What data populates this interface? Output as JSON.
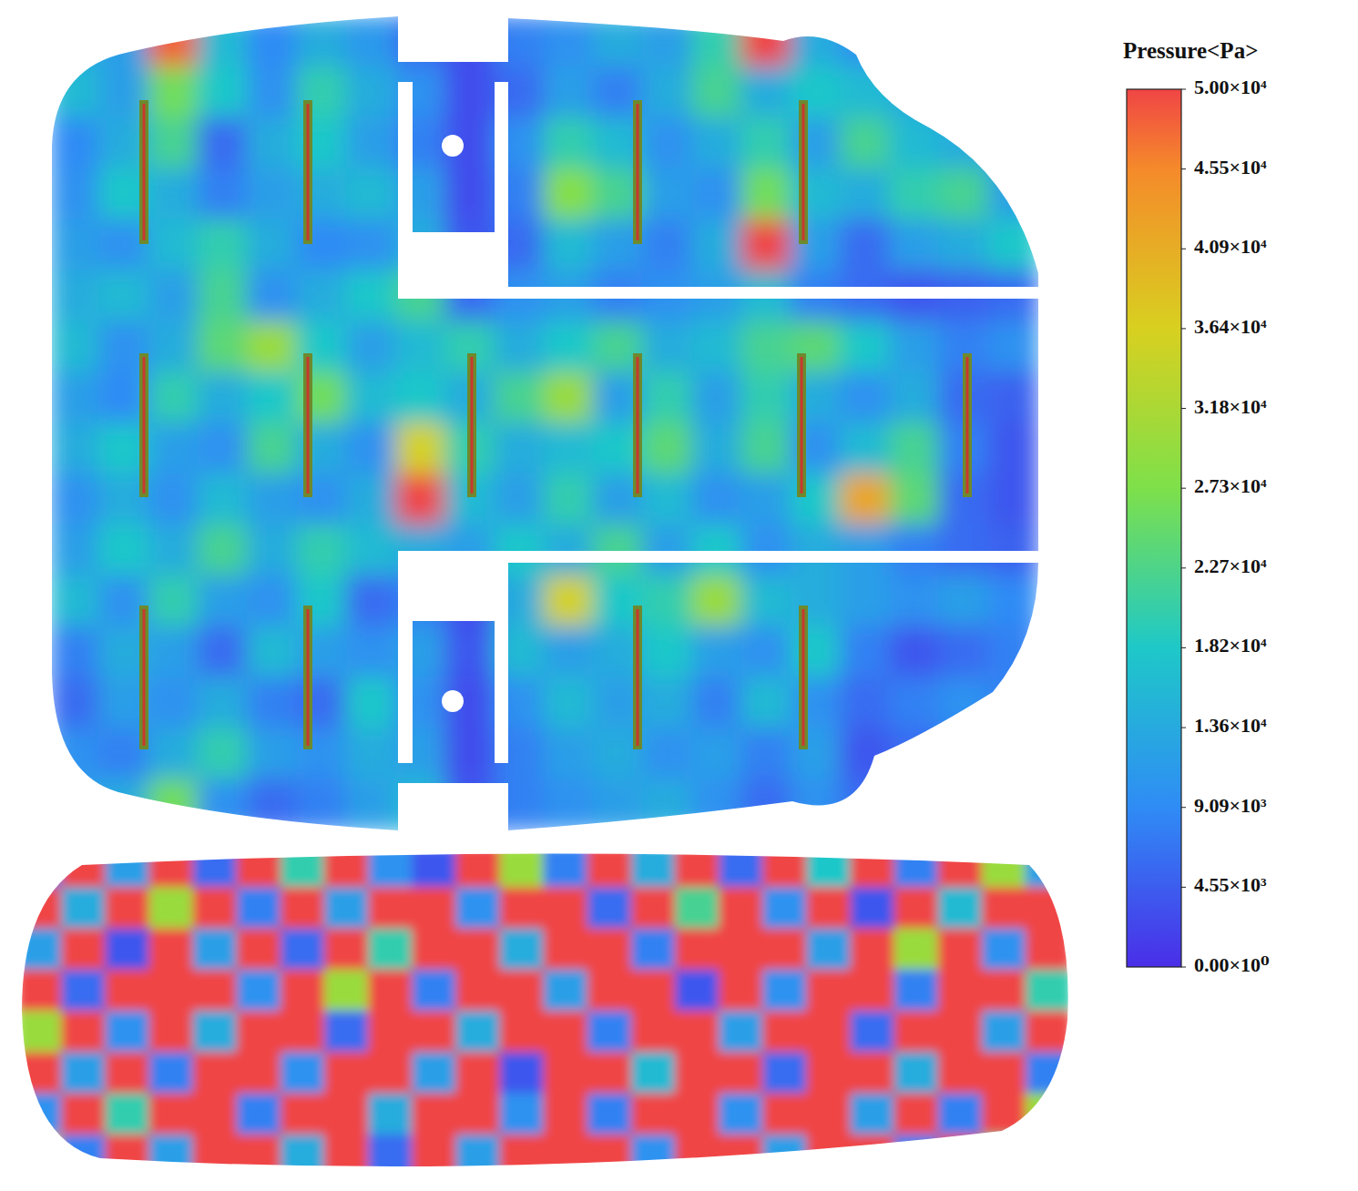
{
  "chart_data": {
    "type": "heatmap",
    "title": "Pressure<Pa>",
    "colorbar": {
      "range": [
        0,
        50000
      ],
      "ticks": [
        {
          "value": 0,
          "label": "0.00×10⁰"
        },
        {
          "value": 4545,
          "label": "4.55×10³"
        },
        {
          "value": 9091,
          "label": "9.09×10³"
        },
        {
          "value": 13636,
          "label": "1.36×10⁴"
        },
        {
          "value": 18182,
          "label": "1.82×10⁴"
        },
        {
          "value": 22727,
          "label": "2.27×10⁴"
        },
        {
          "value": 27273,
          "label": "2.73×10⁴"
        },
        {
          "value": 31818,
          "label": "3.18×10⁴"
        },
        {
          "value": 36364,
          "label": "3.64×10⁴"
        },
        {
          "value": 40909,
          "label": "4.09×10⁴"
        },
        {
          "value": 45455,
          "label": "4.55×10⁴"
        },
        {
          "value": 50000,
          "label": "5.00×10⁴"
        }
      ]
    },
    "values": [
      [
        [
          14000,
          12000,
          48000,
          16000,
          9000,
          14000,
          11000,
          6000,
          3000,
          8000,
          10000,
          14000,
          12000,
          20000,
          50000,
          14000,
          10000,
          8000,
          6000,
          5000
        ],
        [
          16000,
          12000,
          26000,
          18000,
          10000,
          20000,
          14000,
          10000,
          3000,
          6000,
          12000,
          8000,
          14000,
          22000,
          14000,
          18000,
          16000,
          14000,
          9000,
          7000
        ],
        [
          9000,
          14000,
          22000,
          6000,
          14000,
          18000,
          12000,
          8000,
          3000,
          10000,
          20000,
          16000,
          10000,
          14000,
          20000,
          12000,
          22000,
          16000,
          14000,
          10000
        ],
        [
          10000,
          18000,
          14000,
          8000,
          12000,
          14000,
          16000,
          12000,
          3000,
          8000,
          28000,
          22000,
          12000,
          10000,
          26000,
          16000,
          14000,
          20000,
          22000,
          12000
        ],
        [
          12000,
          10000,
          16000,
          20000,
          14000,
          9000,
          10000,
          14000,
          4000,
          6000,
          16000,
          12000,
          8000,
          14000,
          50000,
          12000,
          6000,
          12000,
          14000,
          18000
        ],
        [
          14000,
          16000,
          12000,
          22000,
          10000,
          14000,
          18000,
          22000,
          6000,
          10000,
          12000,
          8000,
          10000,
          12000,
          16000,
          8000,
          6000,
          4000,
          5000,
          6000
        ],
        [
          16000,
          10000,
          14000,
          24000,
          30000,
          18000,
          12000,
          16000,
          20000,
          14000,
          18000,
          22000,
          14000,
          16000,
          22000,
          24000,
          18000,
          12000,
          8000,
          10000
        ],
        [
          12000,
          9000,
          20000,
          14000,
          18000,
          26000,
          16000,
          18000,
          14000,
          22000,
          30000,
          12000,
          20000,
          12000,
          20000,
          14000,
          10000,
          14000,
          6000,
          5000
        ],
        [
          14000,
          18000,
          12000,
          10000,
          22000,
          14000,
          10000,
          36000,
          20000,
          14000,
          16000,
          18000,
          24000,
          14000,
          22000,
          10000,
          16000,
          22000,
          8000,
          4000
        ],
        [
          10000,
          14000,
          10000,
          16000,
          12000,
          10000,
          14000,
          50000,
          16000,
          12000,
          20000,
          12000,
          16000,
          10000,
          12000,
          18000,
          42000,
          24000,
          6000,
          4000
        ],
        [
          12000,
          18000,
          14000,
          22000,
          14000,
          20000,
          16000,
          14000,
          12000,
          18000,
          14000,
          22000,
          12000,
          18000,
          10000,
          14000,
          12000,
          8000,
          6000,
          5000
        ],
        [
          16000,
          10000,
          20000,
          12000,
          10000,
          18000,
          6000,
          8000,
          3000,
          14000,
          36000,
          18000,
          20000,
          30000,
          16000,
          14000,
          12000,
          10000,
          12000,
          9000
        ],
        [
          8000,
          14000,
          12000,
          6000,
          16000,
          12000,
          10000,
          12000,
          4000,
          16000,
          12000,
          14000,
          18000,
          12000,
          10000,
          18000,
          8000,
          4000,
          6000,
          8000
        ],
        [
          6000,
          12000,
          10000,
          14000,
          8000,
          6000,
          18000,
          10000,
          3000,
          10000,
          16000,
          12000,
          14000,
          8000,
          16000,
          10000,
          6000,
          8000,
          10000,
          8000
        ],
        [
          10000,
          8000,
          14000,
          20000,
          12000,
          10000,
          14000,
          12000,
          3000,
          8000,
          12000,
          14000,
          10000,
          12000,
          8000,
          12000,
          4000,
          6000,
          8000,
          9000
        ],
        [
          12000,
          14000,
          26000,
          10000,
          6000,
          8000,
          12000,
          16000,
          4000,
          8000,
          10000,
          12000,
          14000,
          10000,
          6000,
          10000,
          6000,
          8000,
          9000,
          10000
        ]
      ],
      [
        [
          8000,
          50000,
          12000,
          50000,
          6000,
          50000,
          20000,
          50000,
          10000,
          4000,
          50000,
          30000,
          8000,
          50000,
          14000,
          50000,
          6000,
          50000,
          18000,
          50000,
          8000,
          50000,
          30000,
          12000
        ],
        [
          50000,
          14000,
          50000,
          30000,
          50000,
          8000,
          50000,
          12000,
          50000,
          50000,
          10000,
          50000,
          50000,
          6000,
          50000,
          22000,
          50000,
          10000,
          50000,
          4000,
          50000,
          16000,
          50000,
          50000
        ],
        [
          12000,
          50000,
          4000,
          50000,
          12000,
          50000,
          6000,
          50000,
          20000,
          50000,
          50000,
          14000,
          50000,
          50000,
          8000,
          50000,
          50000,
          50000,
          12000,
          50000,
          30000,
          50000,
          10000,
          50000
        ],
        [
          50000,
          6000,
          50000,
          50000,
          50000,
          10000,
          50000,
          30000,
          50000,
          8000,
          50000,
          50000,
          12000,
          50000,
          50000,
          4000,
          50000,
          10000,
          50000,
          50000,
          8000,
          50000,
          50000,
          20000
        ],
        [
          30000,
          50000,
          10000,
          50000,
          14000,
          50000,
          50000,
          6000,
          50000,
          50000,
          14000,
          50000,
          50000,
          8000,
          50000,
          50000,
          12000,
          50000,
          50000,
          6000,
          50000,
          50000,
          12000,
          50000
        ],
        [
          50000,
          12000,
          50000,
          8000,
          50000,
          50000,
          10000,
          50000,
          50000,
          12000,
          50000,
          4000,
          50000,
          50000,
          16000,
          50000,
          50000,
          6000,
          50000,
          50000,
          14000,
          50000,
          50000,
          8000
        ],
        [
          10000,
          50000,
          20000,
          50000,
          50000,
          8000,
          50000,
          50000,
          14000,
          50000,
          50000,
          10000,
          50000,
          8000,
          50000,
          50000,
          10000,
          50000,
          50000,
          12000,
          50000,
          8000,
          50000,
          30000
        ],
        [
          40000,
          8000,
          50000,
          12000,
          50000,
          50000,
          14000,
          50000,
          6000,
          50000,
          12000,
          50000,
          50000,
          50000,
          10000,
          50000,
          50000,
          12000,
          50000,
          50000,
          8000,
          50000,
          20000,
          50000
        ]
      ]
    ]
  }
}
